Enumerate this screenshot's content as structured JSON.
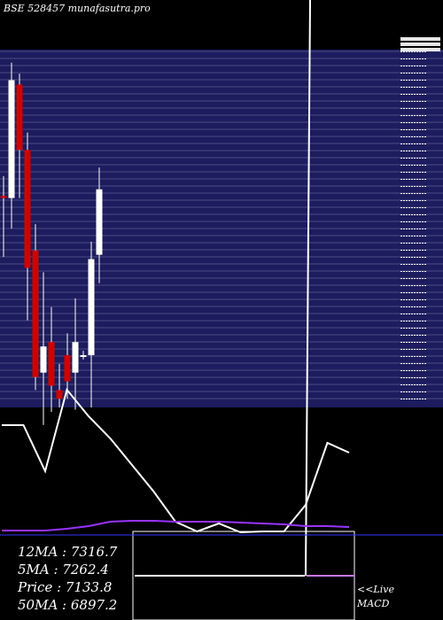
{
  "header": {
    "title": "BSE 528457 munafasutra.pro"
  },
  "chart_data": {
    "type": "candlestick",
    "candles": [
      {
        "open": 7385,
        "high": 7430,
        "low": 7245,
        "close": 7380
      },
      {
        "open": 7380,
        "high": 7690,
        "low": 7310,
        "close": 7650
      },
      {
        "open": 7640,
        "high": 7665,
        "low": 7380,
        "close": 7490
      },
      {
        "open": 7490,
        "high": 7530,
        "low": 7100,
        "close": 7220
      },
      {
        "open": 7260,
        "high": 7320,
        "low": 6940,
        "close": 6970
      },
      {
        "open": 6980,
        "high": 7210,
        "low": 6860,
        "close": 7040
      },
      {
        "open": 7050,
        "high": 7130,
        "low": 6890,
        "close": 6950
      },
      {
        "open": 6940,
        "high": 7000,
        "low": 6900,
        "close": 6920
      },
      {
        "open": 7020,
        "high": 7070,
        "low": 6920,
        "close": 6960
      },
      {
        "open": 6980,
        "high": 7150,
        "low": 6895,
        "close": 7050
      },
      {
        "open": 7020,
        "high": 7030,
        "low": 7010,
        "close": 7020
      },
      {
        "open": 7020,
        "high": 7280,
        "low": 6900,
        "close": 7240
      },
      {
        "open": 7250,
        "high": 7450,
        "low": 7185,
        "close": 7400
      }
    ],
    "price_range": [
      6880,
      7720
    ],
    "macd_line": [
      560,
      560,
      508,
      600,
      570,
      545,
      515,
      485,
      451,
      440,
      449,
      439,
      440,
      440,
      470,
      540,
      529
    ],
    "signal_line": [
      441,
      441,
      441,
      443,
      446,
      451,
      452,
      452,
      451,
      451,
      451,
      450,
      449,
      448,
      446,
      446,
      445
    ]
  },
  "stats": {
    "ma12": "12MA : 7316.7",
    "ma5": "5MA : 7262.4",
    "price": "Price  : 7133.8",
    "ma50": "50MA : 6897.2"
  },
  "footer": {
    "live": "<<Live",
    "macd": "MACD"
  },
  "colors": {
    "panel": "#1c1c5e",
    "gridline": "#a0a0c8",
    "bull_candle": "#ffffff",
    "bear_candle": "#d00000",
    "macd_line": "#ffffff",
    "signal_line": "#9933ff"
  }
}
